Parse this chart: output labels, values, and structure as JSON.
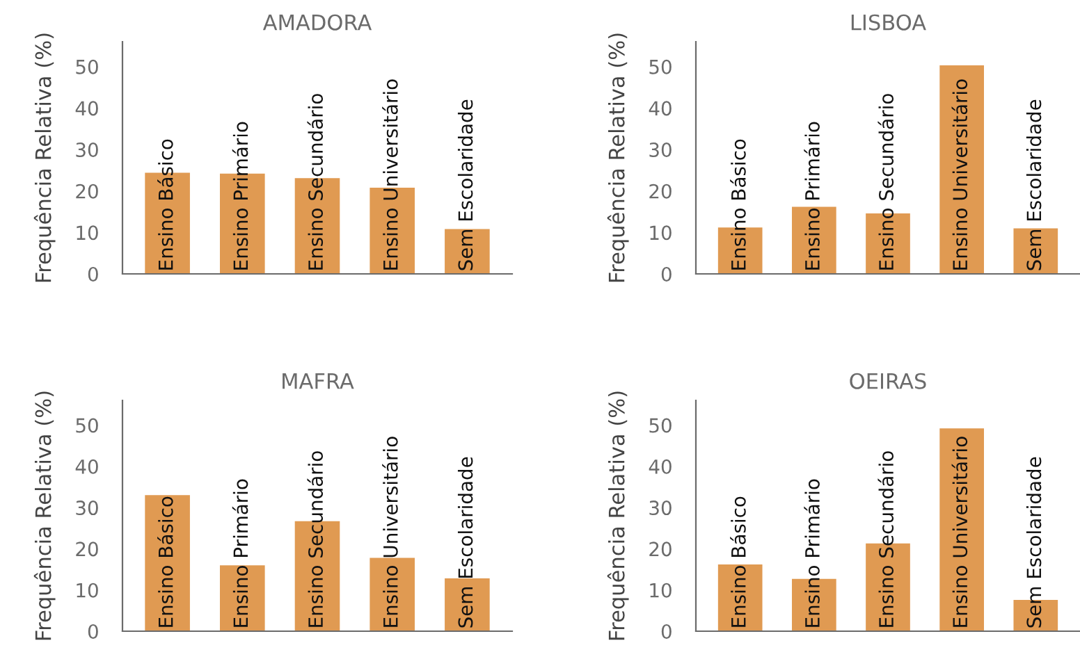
{
  "chart_data": [
    {
      "type": "bar",
      "title": "AMADORA",
      "ylabel": "Frequência Relativa (%)",
      "categories": [
        "Ensino Básico",
        "Ensino Primário",
        "Ensino Secundário",
        "Ensino Universitário",
        "Sem Escolaridade"
      ],
      "values": [
        24.4,
        24.2,
        23.1,
        20.8,
        10.8
      ],
      "color": "#e09a52",
      "ylim": [
        0,
        56
      ],
      "yticks": [
        0,
        10,
        20,
        30,
        40,
        50
      ],
      "grid": false
    },
    {
      "type": "bar",
      "title": "LISBOA",
      "ylabel": "Frequência Relativa (%)",
      "categories": [
        "Ensino Básico",
        "Ensino Primário",
        "Ensino Secundário",
        "Ensino Universitário",
        "Sem Escolaridade"
      ],
      "values": [
        11.2,
        16.2,
        14.6,
        50.3,
        11.0
      ],
      "color": "#e09a52",
      "ylim": [
        0,
        56
      ],
      "yticks": [
        0,
        10,
        20,
        30,
        40,
        50
      ],
      "grid": false
    },
    {
      "type": "bar",
      "title": "MAFRA",
      "ylabel": "Frequência Relativa (%)",
      "categories": [
        "Ensino Básico",
        "Ensino Primário",
        "Ensino Secundário",
        "Ensino Universitário",
        "Sem Escolaridade"
      ],
      "values": [
        33.0,
        16.0,
        26.7,
        17.8,
        12.8
      ],
      "color": "#e09a52",
      "ylim": [
        0,
        56
      ],
      "yticks": [
        0,
        10,
        20,
        30,
        40,
        50
      ],
      "grid": false
    },
    {
      "type": "bar",
      "title": "OEIRAS",
      "ylabel": "Frequência Relativa (%)",
      "categories": [
        "Ensino Básico",
        "Ensino Primário",
        "Ensino Secundário",
        "Ensino Universitário",
        "Sem Escolaridade"
      ],
      "values": [
        16.2,
        12.7,
        21.3,
        49.2,
        7.6
      ],
      "color": "#e09a52",
      "ylim": [
        0,
        56
      ],
      "yticks": [
        0,
        10,
        20,
        30,
        40,
        50
      ],
      "grid": false
    }
  ]
}
